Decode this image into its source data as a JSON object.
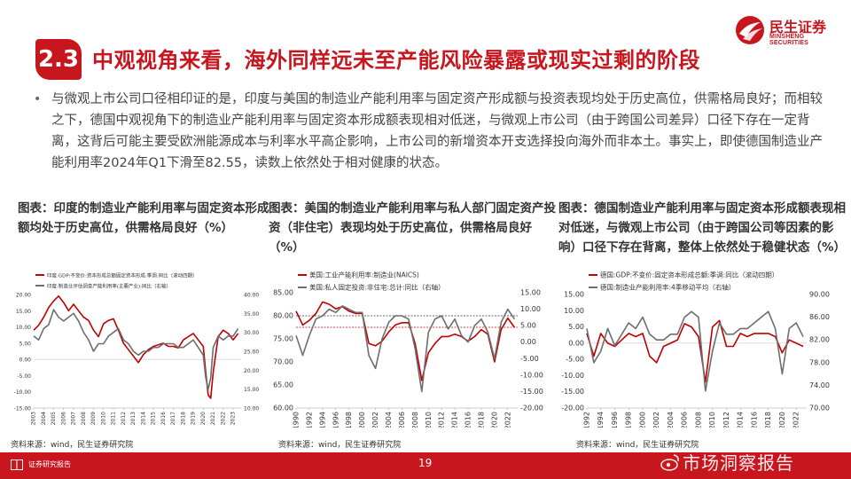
{
  "header": {
    "badge": "2.3",
    "title": "中观视角来看，海外同样远未至产能风险暴露或现实过剩的阶段",
    "logo_cn": "民生证券",
    "logo_en": "MINSHENG SECURITIES"
  },
  "bullet_text": "与微观上市公司口径相印证的是，印度与美国的制造业产能利用率与固定资产形成额与投资表现均处于历史高位，供需格局良好；而相较之下，德国中观视角下的制造业产能利用率与固定资本形成额表现相对低迷，与微观上市公司（由于跨国公司差异）口径下存在一定背离，这背后可能主要受欧洲能源成本与利率水平高企影响，上市公司的新增资本开支选择投向海外而非本土。事实上，即使德国制造业产能利用率2024年Q1下滑至82.55，读数上依然处于相对健康的状态。",
  "colors": {
    "brand_red": "#c8161e",
    "series_red": "#c00000",
    "series_gray": "#6e6e6e"
  },
  "chart_data": [
    {
      "type": "line",
      "title": "图表：印度的制造业产能利用率与固定资本形成额均处于历史高位，供需格局良好（%）",
      "source": "资料来源：wind，民生证券研究院",
      "legend_position": "top-left",
      "x_ticks": [
        "2003",
        "2004",
        "2005",
        "2006",
        "2007",
        "2008",
        "2009",
        "2010",
        "2011",
        "2012",
        "2013",
        "2014",
        "2015",
        "2016",
        "2017",
        "2018",
        "2019",
        "2020",
        "2021",
        "2022",
        "2023"
      ],
      "y_left": {
        "range": [
          -15,
          20
        ],
        "ticks": [
          "20.00",
          "15.00",
          "10.00",
          "5.00",
          "0.00",
          "-5.00",
          "-10.00",
          "-15.00"
        ]
      },
      "y_right": {
        "range": [
          10,
          40
        ],
        "ticks": [
          "40.00",
          "35.00",
          "30.00",
          "25.00",
          "20.00",
          "15.00",
          "10.00"
        ]
      },
      "series": [
        {
          "name": "印度:GDP:不变价:资本形成总额固定资本形成:季调:同比（滚动四期）",
          "axis": "left",
          "color": "#c00000",
          "x": [
            2003,
            2003.5,
            2004,
            2004.5,
            2005,
            2005.5,
            2006,
            2006.5,
            2007,
            2007.5,
            2008,
            2008.5,
            2009,
            2009.5,
            2010,
            2010.5,
            2011,
            2011.5,
            2012,
            2012.5,
            2013,
            2013.5,
            2014,
            2014.5,
            2015,
            2015.5,
            2016,
            2016.5,
            2017,
            2017.5,
            2018,
            2018.5,
            2019,
            2019.5,
            2020,
            2020.25,
            2020.5,
            2020.75,
            2021,
            2021.5,
            2022,
            2022.5,
            2023,
            2023.5
          ],
          "y": [
            9,
            10.5,
            13,
            16,
            18,
            19.5,
            17.5,
            15,
            17,
            15,
            13,
            12,
            9,
            7,
            11,
            12,
            12.5,
            9,
            5,
            3,
            1,
            -1,
            1.5,
            3,
            4,
            4.5,
            5,
            4,
            4,
            3.5,
            6,
            7,
            8,
            6,
            4,
            -4,
            -11,
            -12,
            -4,
            7,
            9,
            8,
            6,
            8
          ]
        },
        {
          "name": "印度:制造业评估调查产能利用率(主要产业):同比（右轴）",
          "axis": "right",
          "color": "#6e6e6e",
          "x": [
            2003,
            2003.5,
            2004,
            2004.5,
            2005,
            2005.5,
            2006,
            2006.5,
            2007,
            2007.5,
            2008,
            2008.5,
            2009,
            2009.5,
            2010,
            2010.5,
            2011,
            2011.5,
            2012,
            2012.5,
            2013,
            2013.5,
            2014,
            2014.5,
            2015,
            2015.5,
            2016,
            2016.5,
            2017,
            2017.5,
            2018,
            2018.5,
            2019,
            2019.5,
            2020,
            2020.25,
            2020.5,
            2020.75,
            2021,
            2021.5,
            2022,
            2022.5,
            2023,
            2023.5
          ],
          "y": [
            29,
            28,
            31,
            32,
            36,
            34,
            33,
            34,
            35,
            33,
            30,
            28,
            25,
            27,
            27,
            29,
            30,
            31,
            28,
            27,
            25,
            24,
            25,
            25,
            26,
            26,
            27,
            27,
            27,
            26,
            26,
            27,
            28,
            26,
            24,
            18,
            15,
            18,
            26,
            29,
            28,
            29,
            29,
            31
          ]
        }
      ]
    },
    {
      "type": "line",
      "title": "图表：美国的制造业产能利用率与私人部门固定资产投资（非住宅）表现均处于历史高位，供需格局良好（%）",
      "source": "资料来源：wind，民生证券研究院",
      "legend_position": "top-left",
      "x_ticks": [
        "1990",
        "1992",
        "1994",
        "1996",
        "1998",
        "2000",
        "2002",
        "2004",
        "2006",
        "2008",
        "2010",
        "2012",
        "2014",
        "2016",
        "2018",
        "2020",
        "2022"
      ],
      "y_left": {
        "range": [
          60,
          85
        ],
        "ticks": [
          "85.00",
          "80.00",
          "75.00",
          "70.00",
          "65.00",
          "60.00"
        ]
      },
      "y_right": {
        "range": [
          -20,
          15
        ],
        "ticks": [
          "15.00",
          "10.00",
          "5.00",
          "0.00",
          "-5.00",
          "-10.00",
          "-15.00",
          "-20.00"
        ]
      },
      "series": [
        {
          "name": "美国:工业产能利用率:制造业(NAICS)",
          "axis": "left",
          "color": "#c00000",
          "x": [
            1990,
            1991,
            1992,
            1993,
            1994,
            1995,
            1996,
            1997,
            1998,
            1999,
            2000,
            2001,
            2002,
            2003,
            2004,
            2005,
            2006,
            2007,
            2008,
            2009,
            2010,
            2011,
            2012,
            2013,
            2014,
            2015,
            2016,
            2017,
            2018,
            2019,
            2020,
            2021,
            2022,
            2023
          ],
          "y": [
            81,
            78,
            79,
            80.5,
            83,
            82.5,
            81.5,
            82,
            81,
            80.5,
            80.5,
            74,
            73.5,
            74.5,
            76.5,
            78,
            78.5,
            78.5,
            74,
            66,
            72,
            74,
            75.5,
            75.5,
            76,
            75.5,
            74.5,
            75.5,
            77,
            76,
            70,
            77,
            79.5,
            77.5
          ]
        },
        {
          "name": "美国:私人固定投资:非住宅:总计:同比（右轴）",
          "axis": "right",
          "color": "#6e6e6e",
          "x": [
            1990,
            1991,
            1992,
            1993,
            1994,
            1995,
            1996,
            1997,
            1998,
            1999,
            2000,
            2001,
            2002,
            2003,
            2004,
            2005,
            2006,
            2007,
            2008,
            2009,
            2010,
            2011,
            2012,
            2013,
            2014,
            2015,
            2016,
            2017,
            2018,
            2019,
            2020,
            2021,
            2022,
            2023
          ],
          "y": [
            2,
            -4,
            2,
            7,
            8,
            10,
            9,
            11,
            10,
            9,
            9,
            -4,
            -8,
            1,
            6,
            8,
            8,
            7,
            -2,
            -15,
            3,
            7,
            8,
            4,
            7,
            2,
            0,
            5,
            7,
            3,
            -5,
            6,
            10,
            7
          ]
        }
      ],
      "reference_lines": [
        {
          "axis": "left",
          "value": 80,
          "style": "dashed",
          "color": "#333333"
        },
        {
          "axis": "left",
          "value": 77.5,
          "style": "dashed",
          "color": "#c00000"
        }
      ]
    },
    {
      "type": "line",
      "title": "图表：德国制造业产能利用率与固定资本形成额表现相对低迷，与微观上市公司（由于跨国公司等因素的影响）口径下存在背离，整体上依然处于稳健状态（%）",
      "source": "资料来源：wind，民生证券研究院",
      "legend_position": "top-left",
      "x_ticks": [
        "1992",
        "1994",
        "1996",
        "1998",
        "2000",
        "2002",
        "2004",
        "2006",
        "2008",
        "2010",
        "2012",
        "2014",
        "2016",
        "2018",
        "2020",
        "2022"
      ],
      "y_left": {
        "range": [
          -20,
          15
        ],
        "ticks": [
          "15.00",
          "10.00",
          "5.00",
          "0.00",
          "-5.00",
          "-10.00",
          "-15.00",
          "-20.00"
        ]
      },
      "y_right": {
        "range": [
          70,
          90
        ],
        "ticks": [
          "90.00",
          "86.00",
          "82.00",
          "78.00",
          "74.00",
          "70.00"
        ]
      },
      "series": [
        {
          "name": "德国:GDP:不变价:固定资本形成总额:季调:同比（滚动四期）",
          "axis": "left",
          "color": "#c00000",
          "x": [
            1992,
            1993,
            1994,
            1995,
            1996,
            1997,
            1998,
            1999,
            2000,
            2001,
            2002,
            2003,
            2004,
            2005,
            2006,
            2007,
            2008,
            2009,
            2010,
            2011,
            2012,
            2013,
            2014,
            2015,
            2016,
            2017,
            2018,
            2019,
            2020,
            2021,
            2022,
            2023
          ],
          "y": [
            3,
            -4,
            3,
            0,
            -1,
            1,
            3,
            2,
            3,
            -4,
            -6,
            -1,
            0,
            1,
            6,
            5,
            2,
            -12,
            5,
            7,
            -1,
            -1,
            3,
            2,
            3,
            3,
            3,
            2,
            -3,
            1,
            0,
            -1
          ]
        },
        {
          "name": "德国:制造业产能利用率:4季移动平均（右轴）",
          "axis": "right",
          "color": "#6e6e6e",
          "x": [
            1992,
            1993,
            1994,
            1995,
            1996,
            1997,
            1998,
            1999,
            2000,
            2001,
            2002,
            2003,
            2004,
            2005,
            2006,
            2007,
            2008,
            2009,
            2010,
            2011,
            2012,
            2013,
            2014,
            2015,
            2016,
            2017,
            2018,
            2019,
            2020,
            2021,
            2022,
            2023
          ],
          "y": [
            84,
            78,
            80,
            84,
            81,
            83,
            85,
            84,
            86,
            83,
            82,
            82,
            83,
            83,
            86,
            87,
            86,
            73,
            80,
            85,
            83,
            83,
            84,
            84,
            85,
            86,
            87,
            84,
            76,
            84,
            85,
            82.55
          ]
        }
      ]
    }
  ],
  "footer": {
    "label": "证券研究报告",
    "page": "19",
    "watermark": "市场洞察报告"
  }
}
